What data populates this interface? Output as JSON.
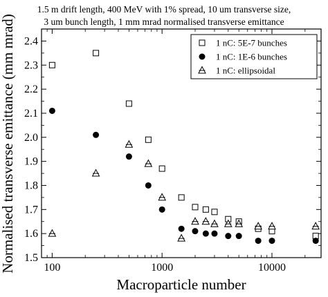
{
  "chart_data": {
    "type": "scatter",
    "title_lines": [
      "1.5 m drift length, 400 MeV with 1% spread, 10 um transverse size,",
      "3 um bunch length, 1 mm mrad normalised transverse emittance"
    ],
    "xlabel": "Macroparticle number",
    "ylabel": "Normalised transverse emittance (mm mrad)",
    "x_scale": "log",
    "xlim": [
      80,
      28000
    ],
    "ylim": [
      1.5,
      2.45
    ],
    "x_ticks": [
      100,
      1000,
      10000
    ],
    "x_tick_labels": [
      "100",
      "1000",
      "10000"
    ],
    "y_ticks": [
      1.5,
      1.6,
      1.7,
      1.8,
      1.9,
      2.0,
      2.1,
      2.2,
      2.3,
      2.4
    ],
    "y_tick_labels": [
      "1.5",
      "1.6",
      "1.7",
      "1.8",
      "1.9",
      "2.0",
      "2.1",
      "2.2",
      "2.3",
      "2.4"
    ],
    "grid": false,
    "legend_position": "top-right",
    "series": [
      {
        "name": "1 nC: 5E-7 bunches",
        "marker": "open-square",
        "x": [
          100,
          250,
          500,
          750,
          1000,
          1500,
          2000,
          2500,
          3000,
          4000,
          5000,
          7500,
          10000,
          25000
        ],
        "y": [
          2.3,
          2.35,
          2.14,
          1.99,
          1.87,
          1.75,
          1.71,
          1.7,
          1.69,
          1.66,
          1.65,
          1.62,
          1.61,
          1.59
        ]
      },
      {
        "name": "1 nC: 1E-6 bunches",
        "marker": "filled-circle",
        "x": [
          100,
          250,
          500,
          750,
          1000,
          1500,
          2000,
          2500,
          3000,
          4000,
          5000,
          7500,
          10000,
          25000
        ],
        "y": [
          2.11,
          2.01,
          1.92,
          1.8,
          1.7,
          1.62,
          1.61,
          1.6,
          1.6,
          1.59,
          1.59,
          1.57,
          1.57,
          1.57
        ]
      },
      {
        "name": "1 nC: ellipsoidal",
        "marker": "triangle",
        "x": [
          100,
          250,
          500,
          750,
          1000,
          1500,
          2000,
          2500,
          3000,
          4000,
          5000,
          7500,
          10000,
          25000
        ],
        "y": [
          1.6,
          1.85,
          1.97,
          1.89,
          1.75,
          1.58,
          1.65,
          1.65,
          1.64,
          1.64,
          1.64,
          1.63,
          1.63,
          1.63
        ]
      }
    ]
  }
}
